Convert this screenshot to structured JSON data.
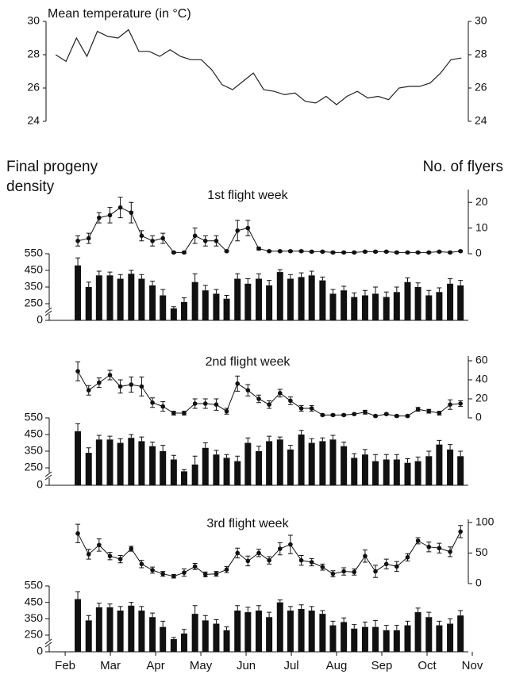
{
  "chart_data": [
    {
      "type": "line",
      "title": "Mean temperature (in °C)",
      "x": [
        -0.21,
        0.02,
        0.25,
        0.48,
        0.71,
        0.94,
        1.17,
        1.4,
        1.63,
        1.86,
        2.09,
        2.32,
        2.55,
        2.78,
        3.01,
        3.24,
        3.47,
        3.7,
        3.93,
        4.16,
        4.39,
        4.62,
        4.85,
        5.08,
        5.31,
        5.54,
        5.77,
        6.0,
        6.23,
        6.46,
        6.69,
        6.92,
        7.15,
        7.38,
        7.61,
        7.84,
        8.07,
        8.3,
        8.53,
        8.76
      ],
      "values": [
        28.0,
        27.6,
        29.0,
        27.9,
        29.4,
        29.1,
        29.0,
        29.5,
        28.2,
        28.2,
        27.9,
        28.3,
        27.9,
        27.7,
        27.7,
        27.1,
        26.2,
        25.9,
        26.4,
        26.9,
        25.9,
        25.8,
        25.6,
        25.7,
        25.2,
        25.1,
        25.5,
        25.0,
        25.5,
        25.8,
        25.4,
        25.5,
        25.3,
        26.0,
        26.1,
        26.1,
        26.3,
        26.9,
        27.7,
        27.8
      ],
      "color": "#222222",
      "xlim": [
        -0.3,
        9.0
      ],
      "ylim": [
        24,
        30
      ],
      "yticks": [
        24,
        26,
        28,
        30
      ],
      "y2lim": [
        24,
        30
      ],
      "y2ticks": [
        24,
        26,
        28,
        30
      ]
    },
    {
      "type": "combo",
      "title": "1st flight week",
      "y_label": "Final progeny density",
      "y2_label": "No. of flyers",
      "x": [
        0.28,
        0.52,
        0.75,
        0.99,
        1.22,
        1.46,
        1.69,
        1.93,
        2.16,
        2.4,
        2.63,
        2.87,
        3.1,
        3.34,
        3.57,
        3.81,
        4.04,
        4.28,
        4.51,
        4.75,
        4.98,
        5.22,
        5.45,
        5.69,
        5.92,
        6.16,
        6.39,
        6.63,
        6.86,
        7.1,
        7.33,
        7.57,
        7.8,
        8.04,
        8.27,
        8.51,
        8.74
      ],
      "bars": {
        "color": "#111111",
        "values": [
          480,
          350,
          420,
          420,
          400,
          430,
          400,
          360,
          300,
          180,
          260,
          380,
          330,
          310,
          280,
          400,
          370,
          400,
          360,
          440,
          400,
          410,
          420,
          390,
          310,
          330,
          290,
          300,
          310,
          290,
          320,
          380,
          350,
          300,
          320,
          370,
          360
        ],
        "errors": [
          45,
          30,
          25,
          20,
          25,
          20,
          25,
          25,
          35,
          25,
          25,
          50,
          30,
          25,
          20,
          30,
          30,
          30,
          30,
          15,
          25,
          25,
          25,
          20,
          25,
          25,
          25,
          30,
          40,
          30,
          30,
          25,
          25,
          30,
          25,
          30,
          30
        ]
      },
      "flyers": {
        "color": "#111111",
        "axis": "y2",
        "values": [
          5,
          6,
          14,
          15,
          18,
          16,
          7,
          5,
          6,
          0.5,
          0.5,
          7,
          5,
          5,
          1,
          9,
          10,
          2,
          1,
          1,
          1,
          1,
          0.8,
          0.8,
          0.5,
          0.5,
          0.5,
          0.8,
          0.8,
          0.8,
          0.5,
          0.5,
          0.5,
          0.5,
          0.8,
          0.5,
          1
        ],
        "errors": [
          2,
          2,
          2,
          3,
          4,
          4,
          2,
          2,
          2,
          0.3,
          0.3,
          3,
          2,
          2,
          0.3,
          4,
          3,
          0.5,
          0.3,
          0.3,
          0.3,
          0.3,
          0.3,
          0.3,
          0.3,
          0.3,
          0.3,
          0.3,
          0.3,
          0.3,
          0.3,
          0.3,
          0.3,
          0.3,
          0.3,
          0.3,
          0.3
        ]
      },
      "xlim": [
        -0.3,
        9.0
      ],
      "ylim": [
        0,
        550
      ],
      "yticks": [
        0,
        250,
        350,
        450,
        550
      ],
      "y_break": [
        0,
        250
      ],
      "y2lim": [
        0,
        25
      ],
      "y2ticks": [
        0,
        10,
        20
      ]
    },
    {
      "type": "combo",
      "title": "2nd flight week",
      "x": [
        0.28,
        0.52,
        0.75,
        0.99,
        1.22,
        1.46,
        1.69,
        1.93,
        2.16,
        2.4,
        2.63,
        2.87,
        3.1,
        3.34,
        3.57,
        3.81,
        4.04,
        4.28,
        4.51,
        4.75,
        4.98,
        5.22,
        5.45,
        5.69,
        5.92,
        6.16,
        6.39,
        6.63,
        6.86,
        7.1,
        7.33,
        7.57,
        7.8,
        8.04,
        8.27,
        8.51,
        8.74
      ],
      "bars": {
        "color": "#111111",
        "values": [
          470,
          340,
          420,
          420,
          400,
          430,
          410,
          380,
          350,
          300,
          200,
          270,
          370,
          330,
          310,
          290,
          400,
          350,
          410,
          420,
          360,
          450,
          400,
          410,
          420,
          380,
          310,
          330,
          290,
          300,
          300,
          280,
          290,
          320,
          390,
          360,
          320
        ],
        "errors": [
          45,
          30,
          25,
          20,
          25,
          20,
          25,
          25,
          35,
          25,
          25,
          50,
          30,
          25,
          20,
          30,
          30,
          30,
          30,
          15,
          25,
          25,
          25,
          20,
          25,
          25,
          25,
          30,
          40,
          30,
          30,
          25,
          25,
          30,
          25,
          30,
          30
        ]
      },
      "flyers": {
        "color": "#111111",
        "axis": "y2",
        "values": [
          49,
          29,
          37,
          45,
          33,
          35,
          33,
          16,
          12,
          5,
          5,
          15,
          15,
          14,
          7,
          36,
          29,
          20,
          14,
          26,
          18,
          10,
          10,
          3,
          3,
          3,
          4,
          6,
          2,
          4,
          2,
          2,
          9,
          7,
          5,
          14,
          15
        ],
        "errors": [
          10,
          5,
          5,
          5,
          7,
          8,
          10,
          5,
          5,
          2,
          2,
          5,
          5,
          6,
          3,
          8,
          6,
          4,
          4,
          4,
          4,
          3,
          3,
          1,
          1,
          1,
          1,
          2,
          1,
          1,
          1,
          1,
          2,
          2,
          2,
          5,
          3
        ]
      },
      "xlim": [
        -0.3,
        9.0
      ],
      "ylim": [
        0,
        550
      ],
      "yticks": [
        0,
        250,
        350,
        450,
        550
      ],
      "y_break": [
        0,
        250
      ],
      "y2lim": [
        0,
        65
      ],
      "y2ticks": [
        0,
        20,
        40,
        60
      ]
    },
    {
      "type": "combo",
      "title": "3rd flight week",
      "x": [
        0.28,
        0.52,
        0.75,
        0.99,
        1.22,
        1.46,
        1.69,
        1.93,
        2.16,
        2.4,
        2.63,
        2.87,
        3.1,
        3.34,
        3.57,
        3.81,
        4.04,
        4.28,
        4.51,
        4.75,
        4.98,
        5.22,
        5.45,
        5.69,
        5.92,
        6.16,
        6.39,
        6.63,
        6.86,
        7.1,
        7.33,
        7.57,
        7.8,
        8.04,
        8.27,
        8.51,
        8.74
      ],
      "bars": {
        "color": "#111111",
        "values": [
          470,
          340,
          420,
          420,
          400,
          430,
          400,
          360,
          300,
          190,
          260,
          380,
          340,
          320,
          280,
          400,
          390,
          400,
          360,
          450,
          400,
          410,
          400,
          380,
          310,
          330,
          290,
          300,
          300,
          280,
          280,
          310,
          390,
          360,
          310,
          320,
          370
        ],
        "errors": [
          45,
          30,
          25,
          20,
          25,
          20,
          25,
          25,
          35,
          25,
          25,
          50,
          30,
          25,
          20,
          30,
          30,
          30,
          30,
          15,
          25,
          25,
          25,
          20,
          25,
          25,
          25,
          30,
          40,
          30,
          30,
          25,
          25,
          30,
          25,
          30,
          30
        ]
      },
      "flyers": {
        "color": "#111111",
        "axis": "y2",
        "values": [
          82,
          48,
          63,
          45,
          40,
          57,
          32,
          22,
          16,
          12,
          18,
          28,
          15,
          16,
          23,
          50,
          37,
          50,
          38,
          57,
          64,
          38,
          35,
          27,
          16,
          20,
          19,
          45,
          20,
          32,
          28,
          43,
          70,
          60,
          58,
          52,
          85
        ],
        "errors": [
          15,
          8,
          10,
          6,
          6,
          4,
          6,
          5,
          4,
          3,
          6,
          5,
          4,
          4,
          5,
          8,
          8,
          6,
          6,
          10,
          15,
          8,
          6,
          5,
          5,
          6,
          5,
          10,
          10,
          8,
          8,
          6,
          5,
          8,
          8,
          8,
          10
        ]
      },
      "xlim": [
        -0.3,
        9.0
      ],
      "ylim": [
        0,
        550
      ],
      "yticks": [
        0,
        250,
        350,
        450,
        550
      ],
      "y_break": [
        0,
        250
      ],
      "y2lim": [
        0,
        105
      ],
      "y2ticks": [
        0,
        50,
        100
      ],
      "xticks": [
        {
          "value": 0,
          "label": "Feb"
        },
        {
          "value": 1,
          "label": "Mar"
        },
        {
          "value": 2,
          "label": "Apr"
        },
        {
          "value": 3,
          "label": "May"
        },
        {
          "value": 4,
          "label": "Jun"
        },
        {
          "value": 5,
          "label": "Jul"
        },
        {
          "value": 6,
          "label": "Aug"
        },
        {
          "value": 7,
          "label": "Sep"
        },
        {
          "value": 8,
          "label": "Oct"
        },
        {
          "value": 9,
          "label": "Nov"
        }
      ]
    }
  ]
}
